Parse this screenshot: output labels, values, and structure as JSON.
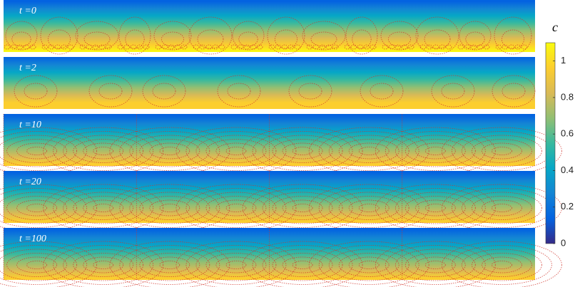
{
  "chart_data": {
    "type": "heatmap",
    "panels": [
      {
        "label": "t =0"
      },
      {
        "label": "t =2"
      },
      {
        "label": "t =10"
      },
      {
        "label": "t =20"
      },
      {
        "label": "t =100"
      }
    ],
    "colorbar_label": "c",
    "ylim": [
      0,
      1.1
    ],
    "yticks": [
      0,
      0.2,
      0.4,
      0.6,
      0.8,
      1
    ],
    "colormap": [
      "#352a87",
      "#0363e1",
      "#1485d4",
      "#06a7c6",
      "#38b99e",
      "#92bf73",
      "#d9ba56",
      "#fcce2e",
      "#f9fb0e"
    ],
    "contour_color": "#d0342c"
  }
}
